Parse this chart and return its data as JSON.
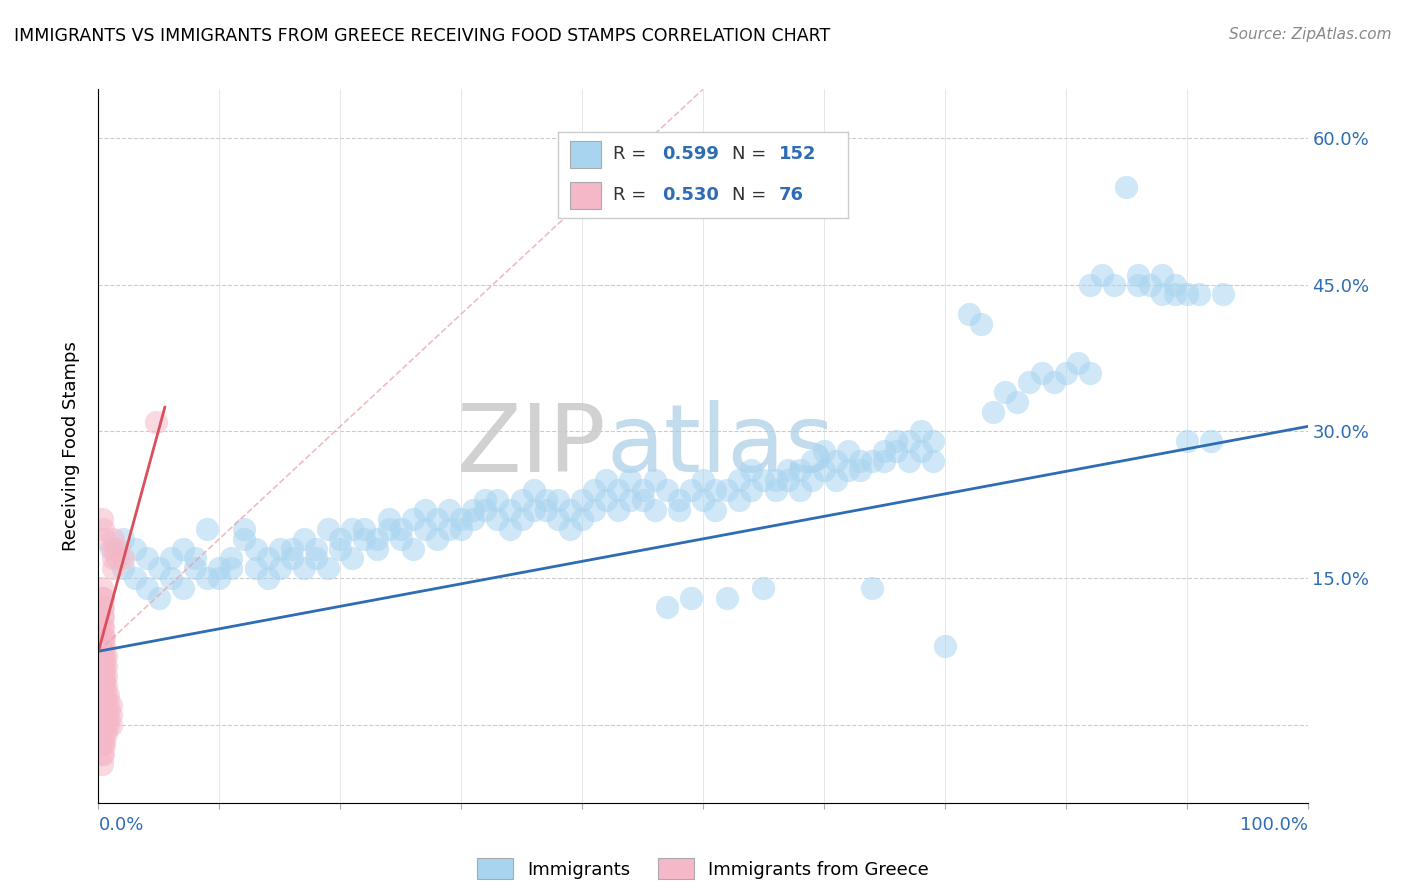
{
  "title": "IMMIGRANTS VS IMMIGRANTS FROM GREECE RECEIVING FOOD STAMPS CORRELATION CHART",
  "source": "Source: ZipAtlas.com",
  "ylabel": "Receiving Food Stamps",
  "xlim": [
    0.0,
    1.0
  ],
  "ylim": [
    -0.08,
    0.65
  ],
  "yticks": [
    0.0,
    0.15,
    0.3,
    0.45,
    0.6
  ],
  "xticks": [
    0.0,
    0.1,
    0.2,
    0.3,
    0.4,
    0.5,
    0.6,
    0.7,
    0.8,
    0.9,
    1.0
  ],
  "R_blue": "0.599",
  "N_blue": "152",
  "R_pink": "0.530",
  "N_pink": "76",
  "blue_color": "#a8d4f0",
  "pink_color": "#f5b8c8",
  "blue_line_color": "#2E6DB4",
  "pink_line_color": "#D94F5C",
  "pink_dash_color": "#e8a0a8",
  "stat_color": "#2E6DB4",
  "watermark_zip": "ZIP",
  "watermark_atlas": "atlas",
  "blue_scatter": [
    [
      0.01,
      0.18
    ],
    [
      0.02,
      0.19
    ],
    [
      0.02,
      0.16
    ],
    [
      0.03,
      0.15
    ],
    [
      0.03,
      0.18
    ],
    [
      0.04,
      0.14
    ],
    [
      0.04,
      0.17
    ],
    [
      0.05,
      0.13
    ],
    [
      0.05,
      0.16
    ],
    [
      0.06,
      0.17
    ],
    [
      0.06,
      0.15
    ],
    [
      0.07,
      0.14
    ],
    [
      0.07,
      0.18
    ],
    [
      0.08,
      0.17
    ],
    [
      0.08,
      0.16
    ],
    [
      0.09,
      0.15
    ],
    [
      0.09,
      0.2
    ],
    [
      0.1,
      0.16
    ],
    [
      0.1,
      0.15
    ],
    [
      0.11,
      0.16
    ],
    [
      0.11,
      0.17
    ],
    [
      0.12,
      0.2
    ],
    [
      0.12,
      0.19
    ],
    [
      0.13,
      0.18
    ],
    [
      0.13,
      0.16
    ],
    [
      0.14,
      0.17
    ],
    [
      0.14,
      0.15
    ],
    [
      0.15,
      0.16
    ],
    [
      0.15,
      0.18
    ],
    [
      0.16,
      0.17
    ],
    [
      0.16,
      0.18
    ],
    [
      0.17,
      0.16
    ],
    [
      0.17,
      0.19
    ],
    [
      0.18,
      0.18
    ],
    [
      0.18,
      0.17
    ],
    [
      0.19,
      0.16
    ],
    [
      0.19,
      0.2
    ],
    [
      0.2,
      0.19
    ],
    [
      0.2,
      0.18
    ],
    [
      0.21,
      0.17
    ],
    [
      0.21,
      0.2
    ],
    [
      0.22,
      0.19
    ],
    [
      0.22,
      0.2
    ],
    [
      0.23,
      0.18
    ],
    [
      0.23,
      0.19
    ],
    [
      0.24,
      0.21
    ],
    [
      0.24,
      0.2
    ],
    [
      0.25,
      0.19
    ],
    [
      0.25,
      0.2
    ],
    [
      0.26,
      0.21
    ],
    [
      0.26,
      0.18
    ],
    [
      0.27,
      0.2
    ],
    [
      0.27,
      0.22
    ],
    [
      0.28,
      0.19
    ],
    [
      0.28,
      0.21
    ],
    [
      0.29,
      0.2
    ],
    [
      0.29,
      0.22
    ],
    [
      0.3,
      0.21
    ],
    [
      0.3,
      0.2
    ],
    [
      0.31,
      0.22
    ],
    [
      0.31,
      0.21
    ],
    [
      0.32,
      0.23
    ],
    [
      0.32,
      0.22
    ],
    [
      0.33,
      0.21
    ],
    [
      0.33,
      0.23
    ],
    [
      0.34,
      0.22
    ],
    [
      0.34,
      0.2
    ],
    [
      0.35,
      0.21
    ],
    [
      0.35,
      0.23
    ],
    [
      0.36,
      0.22
    ],
    [
      0.36,
      0.24
    ],
    [
      0.37,
      0.23
    ],
    [
      0.37,
      0.22
    ],
    [
      0.38,
      0.21
    ],
    [
      0.38,
      0.23
    ],
    [
      0.39,
      0.2
    ],
    [
      0.39,
      0.22
    ],
    [
      0.4,
      0.23
    ],
    [
      0.4,
      0.21
    ],
    [
      0.41,
      0.24
    ],
    [
      0.41,
      0.22
    ],
    [
      0.42,
      0.23
    ],
    [
      0.42,
      0.25
    ],
    [
      0.43,
      0.24
    ],
    [
      0.43,
      0.22
    ],
    [
      0.44,
      0.23
    ],
    [
      0.44,
      0.25
    ],
    [
      0.45,
      0.24
    ],
    [
      0.45,
      0.23
    ],
    [
      0.46,
      0.25
    ],
    [
      0.46,
      0.22
    ],
    [
      0.47,
      0.12
    ],
    [
      0.47,
      0.24
    ],
    [
      0.48,
      0.23
    ],
    [
      0.48,
      0.22
    ],
    [
      0.49,
      0.13
    ],
    [
      0.49,
      0.24
    ],
    [
      0.5,
      0.23
    ],
    [
      0.5,
      0.25
    ],
    [
      0.51,
      0.24
    ],
    [
      0.51,
      0.22
    ],
    [
      0.52,
      0.13
    ],
    [
      0.52,
      0.24
    ],
    [
      0.53,
      0.25
    ],
    [
      0.53,
      0.23
    ],
    [
      0.54,
      0.24
    ],
    [
      0.54,
      0.26
    ],
    [
      0.55,
      0.25
    ],
    [
      0.55,
      0.14
    ],
    [
      0.56,
      0.25
    ],
    [
      0.56,
      0.24
    ],
    [
      0.57,
      0.26
    ],
    [
      0.57,
      0.25
    ],
    [
      0.58,
      0.24
    ],
    [
      0.58,
      0.26
    ],
    [
      0.59,
      0.25
    ],
    [
      0.59,
      0.27
    ],
    [
      0.6,
      0.26
    ],
    [
      0.6,
      0.28
    ],
    [
      0.61,
      0.27
    ],
    [
      0.61,
      0.25
    ],
    [
      0.62,
      0.26
    ],
    [
      0.62,
      0.28
    ],
    [
      0.63,
      0.27
    ],
    [
      0.63,
      0.26
    ],
    [
      0.64,
      0.14
    ],
    [
      0.64,
      0.27
    ],
    [
      0.65,
      0.28
    ],
    [
      0.65,
      0.27
    ],
    [
      0.66,
      0.29
    ],
    [
      0.66,
      0.28
    ],
    [
      0.67,
      0.27
    ],
    [
      0.67,
      0.29
    ],
    [
      0.68,
      0.28
    ],
    [
      0.68,
      0.3
    ],
    [
      0.69,
      0.27
    ],
    [
      0.69,
      0.29
    ],
    [
      0.7,
      0.08
    ],
    [
      0.72,
      0.42
    ],
    [
      0.73,
      0.41
    ],
    [
      0.74,
      0.32
    ],
    [
      0.75,
      0.34
    ],
    [
      0.76,
      0.33
    ],
    [
      0.77,
      0.35
    ],
    [
      0.78,
      0.36
    ],
    [
      0.79,
      0.35
    ],
    [
      0.8,
      0.36
    ],
    [
      0.81,
      0.37
    ],
    [
      0.82,
      0.36
    ],
    [
      0.82,
      0.45
    ],
    [
      0.83,
      0.46
    ],
    [
      0.84,
      0.45
    ],
    [
      0.85,
      0.55
    ],
    [
      0.86,
      0.45
    ],
    [
      0.86,
      0.46
    ],
    [
      0.87,
      0.45
    ],
    [
      0.88,
      0.44
    ],
    [
      0.88,
      0.46
    ],
    [
      0.89,
      0.45
    ],
    [
      0.89,
      0.44
    ],
    [
      0.9,
      0.44
    ],
    [
      0.9,
      0.29
    ],
    [
      0.91,
      0.44
    ],
    [
      0.92,
      0.29
    ],
    [
      0.93,
      0.44
    ]
  ],
  "pink_scatter": [
    [
      0.003,
      0.0
    ],
    [
      0.003,
      0.01
    ],
    [
      0.003,
      0.02
    ],
    [
      0.003,
      0.03
    ],
    [
      0.003,
      0.04
    ],
    [
      0.003,
      0.05
    ],
    [
      0.003,
      0.06
    ],
    [
      0.003,
      0.07
    ],
    [
      0.003,
      0.08
    ],
    [
      0.003,
      0.09
    ],
    [
      0.003,
      0.1
    ],
    [
      0.003,
      0.11
    ],
    [
      0.003,
      0.12
    ],
    [
      0.003,
      0.13
    ],
    [
      0.003,
      0.14
    ],
    [
      0.004,
      0.0
    ],
    [
      0.004,
      0.01
    ],
    [
      0.004,
      0.02
    ],
    [
      0.004,
      0.03
    ],
    [
      0.004,
      0.04
    ],
    [
      0.004,
      0.05
    ],
    [
      0.004,
      0.06
    ],
    [
      0.004,
      0.07
    ],
    [
      0.004,
      0.08
    ],
    [
      0.004,
      0.09
    ],
    [
      0.004,
      0.1
    ],
    [
      0.004,
      0.11
    ],
    [
      0.004,
      0.12
    ],
    [
      0.004,
      0.13
    ],
    [
      0.005,
      0.0
    ],
    [
      0.005,
      0.01
    ],
    [
      0.005,
      0.02
    ],
    [
      0.005,
      0.03
    ],
    [
      0.005,
      0.04
    ],
    [
      0.005,
      0.05
    ],
    [
      0.005,
      0.06
    ],
    [
      0.005,
      0.07
    ],
    [
      0.005,
      0.08
    ],
    [
      0.005,
      0.09
    ],
    [
      0.006,
      0.0
    ],
    [
      0.006,
      0.01
    ],
    [
      0.006,
      0.02
    ],
    [
      0.006,
      0.03
    ],
    [
      0.006,
      0.04
    ],
    [
      0.006,
      0.05
    ],
    [
      0.006,
      0.06
    ],
    [
      0.006,
      0.07
    ],
    [
      0.008,
      0.0
    ],
    [
      0.008,
      0.01
    ],
    [
      0.008,
      0.02
    ],
    [
      0.008,
      0.03
    ],
    [
      0.01,
      0.0
    ],
    [
      0.01,
      0.01
    ],
    [
      0.01,
      0.02
    ],
    [
      0.012,
      0.16
    ],
    [
      0.012,
      0.17
    ],
    [
      0.012,
      0.18
    ],
    [
      0.012,
      0.19
    ],
    [
      0.015,
      0.17
    ],
    [
      0.015,
      0.18
    ],
    [
      0.02,
      0.17
    ],
    [
      0.048,
      0.31
    ],
    [
      0.003,
      -0.02
    ],
    [
      0.003,
      -0.03
    ],
    [
      0.003,
      -0.04
    ],
    [
      0.004,
      -0.01
    ],
    [
      0.004,
      -0.02
    ],
    [
      0.004,
      -0.03
    ],
    [
      0.005,
      -0.01
    ],
    [
      0.005,
      -0.02
    ],
    [
      0.006,
      -0.01
    ],
    [
      0.003,
      0.21
    ],
    [
      0.004,
      0.2
    ],
    [
      0.005,
      0.19
    ]
  ],
  "blue_line": {
    "x0": 0.0,
    "x1": 1.0,
    "y0": 0.075,
    "y1": 0.305
  },
  "pink_line_solid": {
    "x0": 0.0,
    "x1": 0.055,
    "y0": 0.075,
    "y1": 0.325
  },
  "pink_line_dash": {
    "x0": 0.0,
    "x1": 0.5,
    "y0": 0.075,
    "y1": 0.65
  }
}
